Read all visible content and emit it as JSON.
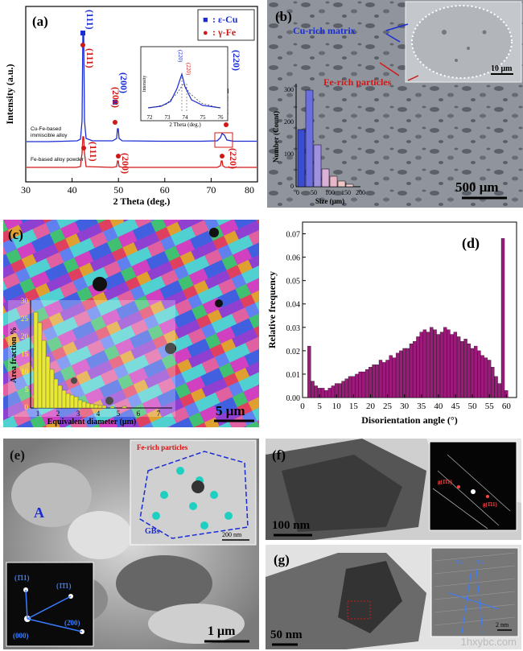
{
  "panel_a": {
    "label": "(a)",
    "legend": [
      {
        "marker": "■",
        "text": ": ε-Cu",
        "color": "#1a2cd6"
      },
      {
        "marker": "●",
        "text": ": γ-Fe",
        "color": "#d01818"
      }
    ],
    "ylabel": "Intensity (a.u.)",
    "xlabel": "2 Theta (deg.)",
    "xticks": [
      "30",
      "40",
      "50",
      "60",
      "70",
      "80"
    ],
    "curve_top_label": [
      "Cu-Fe-based",
      "immiscible alloy"
    ],
    "curve_bottom_label": "Fe-based alloy powder",
    "peaks_top_blue": [
      "(111)",
      "(200)",
      "(220)"
    ],
    "peaks_top_red": [
      "(111)",
      "(200)",
      "(220)"
    ],
    "peaks_bottom_red": [
      "(111)",
      "(200)",
      "(220)"
    ],
    "inset": {
      "xticks": [
        "72",
        "73",
        "74",
        "75",
        "76"
      ],
      "xlabel": "2 Theta (deg.)",
      "ylabel": "Intensity",
      "peak_blue": "(220)",
      "peak_red": "(220)"
    }
  },
  "panel_b": {
    "label": "(b)",
    "annot_blue": "Cu-rich matrix",
    "annot_red": "Fe-rich particles",
    "inset_scale": "10 μm",
    "scale_bar": "500 μm",
    "histogram": {
      "ylabel": "Number (Count)",
      "xlabel": "Size (μm)",
      "yticks": [
        "0",
        "100",
        "200",
        "300"
      ],
      "xticks": [
        "0",
        "50",
        "100",
        "150",
        "200"
      ]
    }
  },
  "panel_c": {
    "label": "(c)",
    "scale_bar": "5 μm",
    "histogram": {
      "ylabel": "Area fraction %",
      "xlabel": "Equivalent diameter (μm)",
      "yticks": [
        "0",
        "5",
        "10",
        "15",
        "20",
        "25",
        "30"
      ],
      "xticks": [
        "1",
        "2",
        "3",
        "4",
        "5",
        "6",
        "7"
      ]
    }
  },
  "chart_data": {
    "type": "bar",
    "title": "(d)",
    "xlabel": "Disorientation angle (°)",
    "ylabel": "Relative frequency",
    "xticks": [
      "0",
      "5",
      "10",
      "15",
      "20",
      "25",
      "30",
      "35",
      "40",
      "45",
      "50",
      "55",
      "60"
    ],
    "yticks": [
      "0.00",
      "0.01",
      "0.02",
      "0.03",
      "0.04",
      "0.05",
      "0.06",
      "0.07"
    ],
    "xlim": [
      0,
      63
    ],
    "ylim": [
      0,
      0.075
    ],
    "bar_color": "#9b1a7a",
    "x": [
      2,
      3,
      4,
      5,
      6,
      7,
      8,
      9,
      10,
      11,
      12,
      13,
      14,
      15,
      16,
      17,
      18,
      19,
      20,
      21,
      22,
      23,
      24,
      25,
      26,
      27,
      28,
      29,
      30,
      31,
      32,
      33,
      34,
      35,
      36,
      37,
      38,
      39,
      40,
      41,
      42,
      43,
      44,
      45,
      46,
      47,
      48,
      49,
      50,
      51,
      52,
      53,
      54,
      55,
      56,
      57,
      58,
      59,
      60
    ],
    "values": [
      0.022,
      0.007,
      0.005,
      0.004,
      0.004,
      0.003,
      0.004,
      0.005,
      0.006,
      0.006,
      0.007,
      0.008,
      0.009,
      0.009,
      0.01,
      0.011,
      0.011,
      0.012,
      0.013,
      0.014,
      0.014,
      0.016,
      0.015,
      0.016,
      0.018,
      0.017,
      0.019,
      0.02,
      0.021,
      0.021,
      0.023,
      0.024,
      0.026,
      0.028,
      0.029,
      0.028,
      0.03,
      0.029,
      0.027,
      0.028,
      0.03,
      0.029,
      0.027,
      0.028,
      0.026,
      0.024,
      0.025,
      0.023,
      0.021,
      0.022,
      0.02,
      0.018,
      0.017,
      0.016,
      0.013,
      0.009,
      0.006,
      0.068,
      0.003
    ]
  },
  "panel_e": {
    "label": "(e)",
    "grain_label": "A",
    "inset_title": "Fe-rich particles",
    "inset_gb": "GBs",
    "inset_scale": "200 nm",
    "scale_bar": "1 μm",
    "diffraction_spots": [
      "(1̄11)",
      "(1̄1̄1)",
      "(2̄00)",
      "(000)"
    ]
  },
  "panel_f": {
    "label": "(f)",
    "scale_bar": "100 nm",
    "spot_a": "g(1̄1̄1)",
    "spot_b": "g(1̄11)"
  },
  "panel_g": {
    "label": "(g)",
    "scale_bar": "50 nm",
    "inset_scale": "2 nm",
    "twin_label_a": "TB",
    "twin_label_b": "TB"
  },
  "watermark": "1hxybc.com"
}
